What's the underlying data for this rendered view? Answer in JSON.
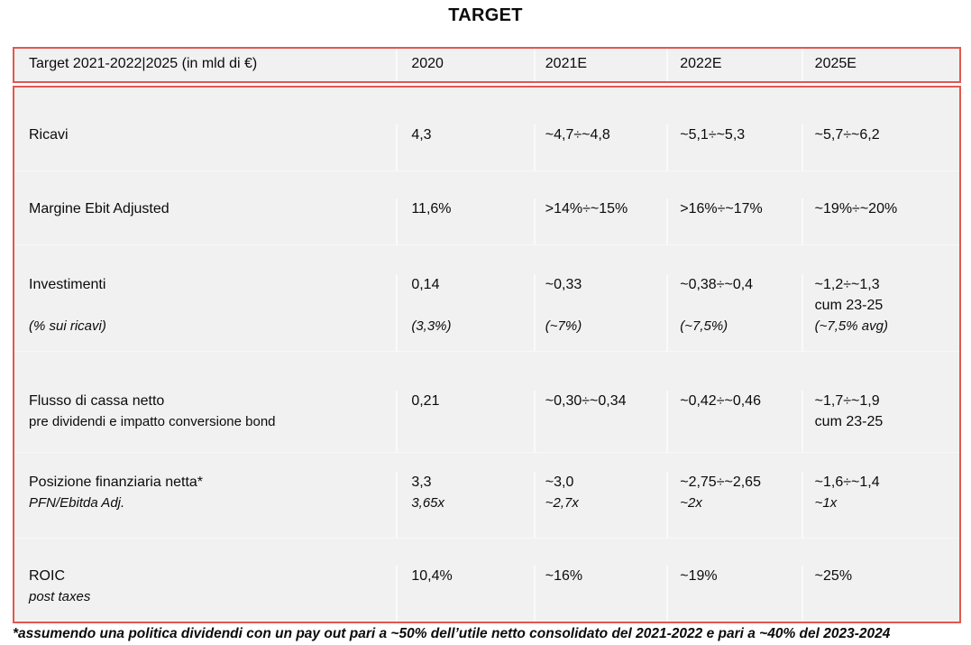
{
  "title": "TARGET",
  "colors": {
    "border_red": "#e2574f",
    "cell_background": "#f1f1f1",
    "column_separator": "#fafafa"
  },
  "table": {
    "header": {
      "label": "Target 2021-2022|2025 (in mld di €)",
      "years": [
        "2020",
        "2021E",
        "2022E",
        "2025E"
      ]
    },
    "rows": [
      {
        "label": [
          {
            "t": "Ricavi",
            "s": "main"
          }
        ],
        "cells": [
          [
            {
              "t": "4,3",
              "s": "main"
            }
          ],
          [
            {
              "t": "~4,7÷~4,8",
              "s": "main"
            }
          ],
          [
            {
              "t": "~5,1÷~5,3",
              "s": "main"
            }
          ],
          [
            {
              "t": "~5,7÷~6,2",
              "s": "main"
            }
          ]
        ]
      },
      {
        "label": [
          {
            "t": "Margine Ebit Adjusted",
            "s": "main"
          }
        ],
        "cells": [
          [
            {
              "t": "11,6%",
              "s": "main"
            }
          ],
          [
            {
              "t": ">14%÷~15%",
              "s": "main"
            }
          ],
          [
            {
              "t": ">16%÷~17%",
              "s": "main"
            }
          ],
          [
            {
              "t": "~19%÷~20%",
              "s": "main"
            }
          ]
        ]
      },
      {
        "label": [
          {
            "t": "Investimenti",
            "s": "main"
          },
          {
            "t": "",
            "s": "main"
          },
          {
            "t": "(% sui ricavi)",
            "s": "italic"
          }
        ],
        "cells": [
          [
            {
              "t": "0,14",
              "s": "main"
            },
            {
              "t": "",
              "s": "main"
            },
            {
              "t": "(3,3%)",
              "s": "italic"
            }
          ],
          [
            {
              "t": "~0,33",
              "s": "main"
            },
            {
              "t": "",
              "s": "main"
            },
            {
              "t": "(~7%)",
              "s": "italic"
            }
          ],
          [
            {
              "t": "~0,38÷~0,4",
              "s": "main"
            },
            {
              "t": "",
              "s": "main"
            },
            {
              "t": "(~7,5%)",
              "s": "italic"
            }
          ],
          [
            {
              "t": "~1,2÷~1,3",
              "s": "main"
            },
            {
              "t": "cum 23-25",
              "s": "main"
            },
            {
              "t": "(~7,5% avg)",
              "s": "italic"
            }
          ]
        ]
      },
      {
        "label": [
          {
            "t": "Flusso di cassa netto",
            "s": "main"
          },
          {
            "t": "pre dividendi e impatto conversione bond",
            "s": "sub"
          }
        ],
        "cells": [
          [
            {
              "t": "0,21",
              "s": "main"
            }
          ],
          [
            {
              "t": "~0,30÷~0,34",
              "s": "main"
            }
          ],
          [
            {
              "t": "~0,42÷~0,46",
              "s": "main"
            }
          ],
          [
            {
              "t": "~1,7÷~1,9",
              "s": "main"
            },
            {
              "t": "cum 23-25",
              "s": "main"
            }
          ]
        ]
      },
      {
        "label": [
          {
            "t": "Posizione finanziaria netta*",
            "s": "main"
          },
          {
            "t": "PFN/Ebitda Adj.",
            "s": "italic"
          }
        ],
        "cells": [
          [
            {
              "t": "3,3",
              "s": "main"
            },
            {
              "t": "3,65x",
              "s": "italic"
            }
          ],
          [
            {
              "t": "~3,0",
              "s": "main"
            },
            {
              "t": "~2,7x",
              "s": "italic"
            }
          ],
          [
            {
              "t": "~2,75÷~2,65",
              "s": "main"
            },
            {
              "t": "~2x",
              "s": "italic"
            }
          ],
          [
            {
              "t": "~1,6÷~1,4",
              "s": "main"
            },
            {
              "t": "~1x",
              "s": "italic"
            }
          ]
        ]
      },
      {
        "label": [
          {
            "t": "ROIC",
            "s": "main"
          },
          {
            "t": "post taxes",
            "s": "italic"
          }
        ],
        "cells": [
          [
            {
              "t": "10,4%",
              "s": "main"
            }
          ],
          [
            {
              "t": "~16%",
              "s": "main"
            }
          ],
          [
            {
              "t": "~19%",
              "s": "main"
            }
          ],
          [
            {
              "t": "~25%",
              "s": "main"
            }
          ]
        ]
      }
    ]
  },
  "footnote": "*assumendo una politica dividendi con un pay out pari a ~50% dell’utile netto consolidato del 2021-2022 e pari a ~40% del 2023-2024"
}
